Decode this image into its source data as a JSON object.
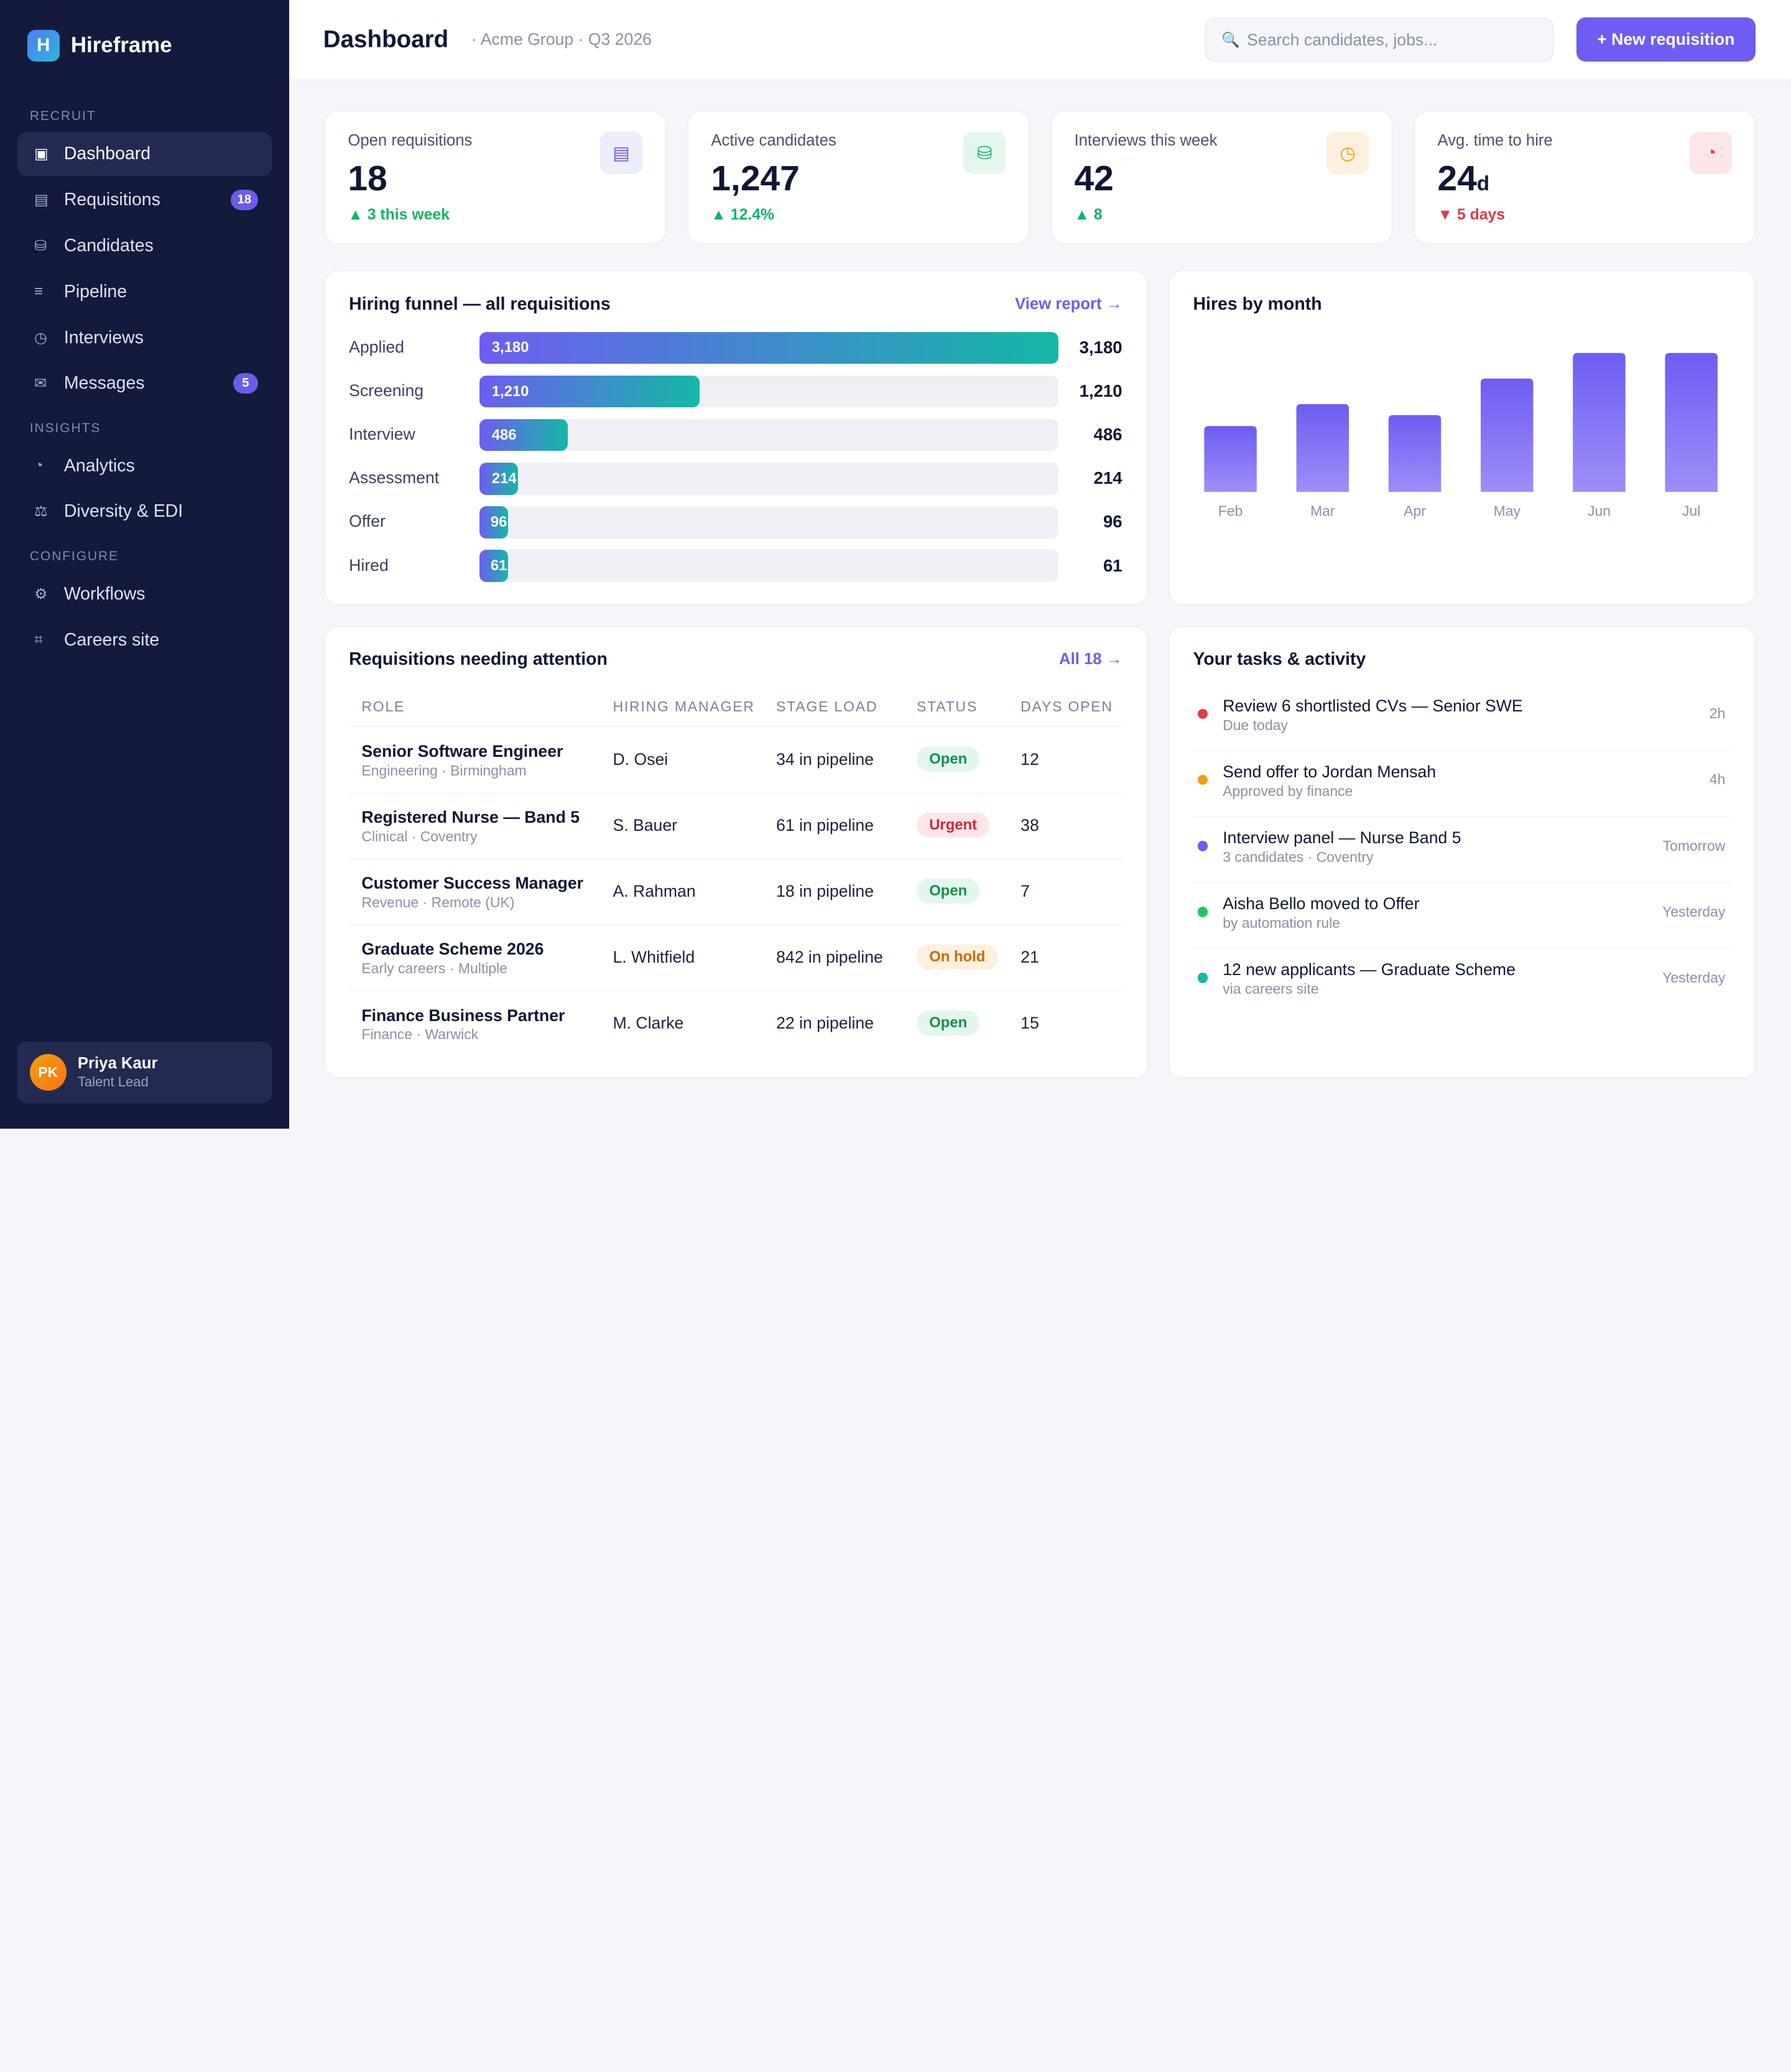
{
  "brand": {
    "logo_letter": "H",
    "name": "Hireframe"
  },
  "sidebar": {
    "sections": [
      {
        "label": "RECRUIT",
        "items": [
          {
            "label": "Dashboard",
            "icon": "dashboard-icon",
            "glyph": "▣",
            "active": true
          },
          {
            "label": "Requisitions",
            "icon": "requisitions-icon",
            "glyph": "▤",
            "badge": "18"
          },
          {
            "label": "Candidates",
            "icon": "candidates-icon",
            "glyph": "⛁"
          },
          {
            "label": "Pipeline",
            "icon": "pipeline-icon",
            "glyph": "≡"
          },
          {
            "label": "Interviews",
            "icon": "interviews-icon",
            "glyph": "◷"
          },
          {
            "label": "Messages",
            "icon": "messages-icon",
            "glyph": "✉",
            "badge": "5"
          }
        ]
      },
      {
        "label": "INSIGHTS",
        "items": [
          {
            "label": "Analytics",
            "icon": "analytics-icon",
            "glyph": "◔"
          },
          {
            "label": "Diversity & EDI",
            "icon": "diversity-icon",
            "glyph": "⚖"
          }
        ]
      },
      {
        "label": "CONFIGURE",
        "items": [
          {
            "label": "Workflows",
            "icon": "workflows-icon",
            "glyph": "⚙"
          },
          {
            "label": "Careers site",
            "icon": "careers-site-icon",
            "glyph": "⌗"
          }
        ]
      }
    ],
    "profile": {
      "initials": "PK",
      "name": "Priya Kaur",
      "role": "Talent Lead"
    }
  },
  "header": {
    "title": "Dashboard",
    "subtitle": "· Acme Group · Q3 2026",
    "search_placeholder": "Search candidates, jobs...",
    "search_icon": "search-icon",
    "new_button": "+ New requisition"
  },
  "kpis": [
    {
      "label": "Open requisitions",
      "value": "18",
      "unit": "",
      "delta": "▲ 3 this week",
      "trend": "up",
      "icon": "requisitions-icon",
      "glyph": "▤",
      "icon_bg": "#ecedfd",
      "icon_color": "#6d5df2"
    },
    {
      "label": "Active candidates",
      "value": "1,247",
      "unit": "",
      "delta": "▲ 12.4%",
      "trend": "up",
      "icon": "candidates-icon",
      "glyph": "⛁",
      "icon_bg": "#e3f7ec",
      "icon_color": "#16b365"
    },
    {
      "label": "Interviews this week",
      "value": "42",
      "unit": "",
      "delta": "▲ 8",
      "trend": "up",
      "icon": "clock-icon",
      "glyph": "◷",
      "icon_bg": "#fdf0dd",
      "icon_color": "#f59e0b"
    },
    {
      "label": "Avg. time to hire",
      "value": "24",
      "unit": "d",
      "delta": "▼ 5 days",
      "trend": "down",
      "icon": "pie-chart-icon",
      "glyph": "◔",
      "icon_bg": "#fde6e8",
      "icon_color": "#e53946"
    }
  ],
  "funnel": {
    "title": "Hiring funnel — all requisitions",
    "link": "View report →",
    "stages": [
      {
        "label": "Applied",
        "value": 3180,
        "display": "3,180"
      },
      {
        "label": "Screening",
        "value": 1210,
        "display": "1,210"
      },
      {
        "label": "Interview",
        "value": 486,
        "display": "486"
      },
      {
        "label": "Assessment",
        "value": 214,
        "display": "214"
      },
      {
        "label": "Offer",
        "value": 96,
        "display": "96"
      },
      {
        "label": "Hired",
        "value": 61,
        "display": "61"
      }
    ]
  },
  "chart_data": {
    "type": "bar",
    "title": "Hires by month",
    "categories": [
      "Feb",
      "Mar",
      "Apr",
      "May",
      "Jun",
      "Jul"
    ],
    "values": [
      9,
      12,
      10.5,
      15.5,
      19,
      19
    ],
    "ylim": [
      0,
      20
    ],
    "xlabel": "",
    "ylabel": "",
    "grid": false,
    "colors": [
      "#6d5df2",
      "#9d8ff8"
    ]
  },
  "requisitions": {
    "title": "Requisitions needing attention",
    "link": "All 18 →",
    "columns": [
      "ROLE",
      "HIRING MANAGER",
      "STAGE LOAD",
      "STATUS",
      "DAYS OPEN"
    ],
    "rows": [
      {
        "role": "Senior Software Engineer",
        "meta": "Engineering · Birmingham",
        "manager": "D. Osei",
        "load": "34 in pipeline",
        "status": "Open",
        "status_kind": "open",
        "days": "12"
      },
      {
        "role": "Registered Nurse — Band 5",
        "meta": "Clinical · Coventry",
        "manager": "S. Bauer",
        "load": "61 in pipeline",
        "status": "Urgent",
        "status_kind": "urgent",
        "days": "38"
      },
      {
        "role": "Customer Success Manager",
        "meta": "Revenue · Remote (UK)",
        "manager": "A. Rahman",
        "load": "18 in pipeline",
        "status": "Open",
        "status_kind": "open",
        "days": "7"
      },
      {
        "role": "Graduate Scheme 2026",
        "meta": "Early careers · Multiple",
        "manager": "L. Whitfield",
        "load": "842 in pipeline",
        "status": "On hold",
        "status_kind": "hold",
        "days": "21"
      },
      {
        "role": "Finance Business Partner",
        "meta": "Finance · Warwick",
        "manager": "M. Clarke",
        "load": "22 in pipeline",
        "status": "Open",
        "status_kind": "open",
        "days": "15"
      }
    ]
  },
  "tasks": {
    "title": "Your tasks & activity",
    "items": [
      {
        "title": "Review 6 shortlisted CVs — Senior SWE",
        "sub": "Due today",
        "time": "2h",
        "color": "#e53946"
      },
      {
        "title": "Send offer to Jordan Mensah",
        "sub": "Approved by finance",
        "time": "4h",
        "color": "#f59e0b"
      },
      {
        "title": "Interview panel — Nurse Band 5",
        "sub": "3 candidates · Coventry",
        "time": "Tomorrow",
        "color": "#6d5df2"
      },
      {
        "title": "Aisha Bello moved to Offer",
        "sub": "by automation rule",
        "time": "Yesterday",
        "color": "#22c55e"
      },
      {
        "title": "12 new applicants — Graduate Scheme",
        "sub": "via careers site",
        "time": "Yesterday",
        "color": "#14b8a6"
      }
    ]
  }
}
